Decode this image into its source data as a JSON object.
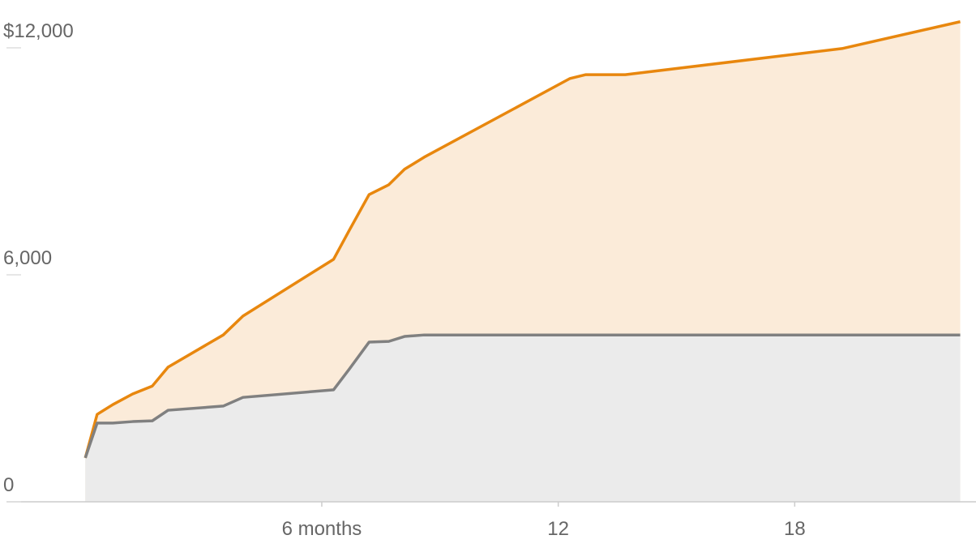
{
  "chart_data": {
    "type": "area",
    "x": [
      0,
      0.3,
      0.7,
      1.2,
      1.7,
      2.1,
      3.5,
      4.0,
      6.3,
      6.7,
      7.2,
      7.7,
      8.1,
      8.6,
      12.3,
      12.7,
      13.7,
      19.2,
      22.2
    ],
    "series": [
      {
        "color": "#e8870e",
        "fill": "#fbebd9",
        "values": [
          1160,
          2310,
          2570,
          2850,
          3060,
          3560,
          4410,
          4910,
          6410,
          7180,
          8120,
          8380,
          8790,
          9110,
          11190,
          11290,
          11290,
          11980,
          12690
        ]
      },
      {
        "color": "#808080",
        "fill": "#ebebeb",
        "values": [
          1160,
          2080,
          2080,
          2120,
          2140,
          2420,
          2530,
          2760,
          2960,
          3510,
          4220,
          4240,
          4370,
          4410,
          4410,
          4410,
          4410,
          4410,
          4410
        ]
      }
    ],
    "xlim": [
      -2,
      22.6
    ],
    "xticks": [
      {
        "value": 6,
        "label": "6 months"
      },
      12,
      18
    ],
    "ylim": [
      0,
      12700
    ],
    "yticks": [
      0,
      {
        "value": 6000,
        "label": "6,000"
      },
      {
        "value": 12000,
        "label": "$12,000"
      }
    ]
  }
}
